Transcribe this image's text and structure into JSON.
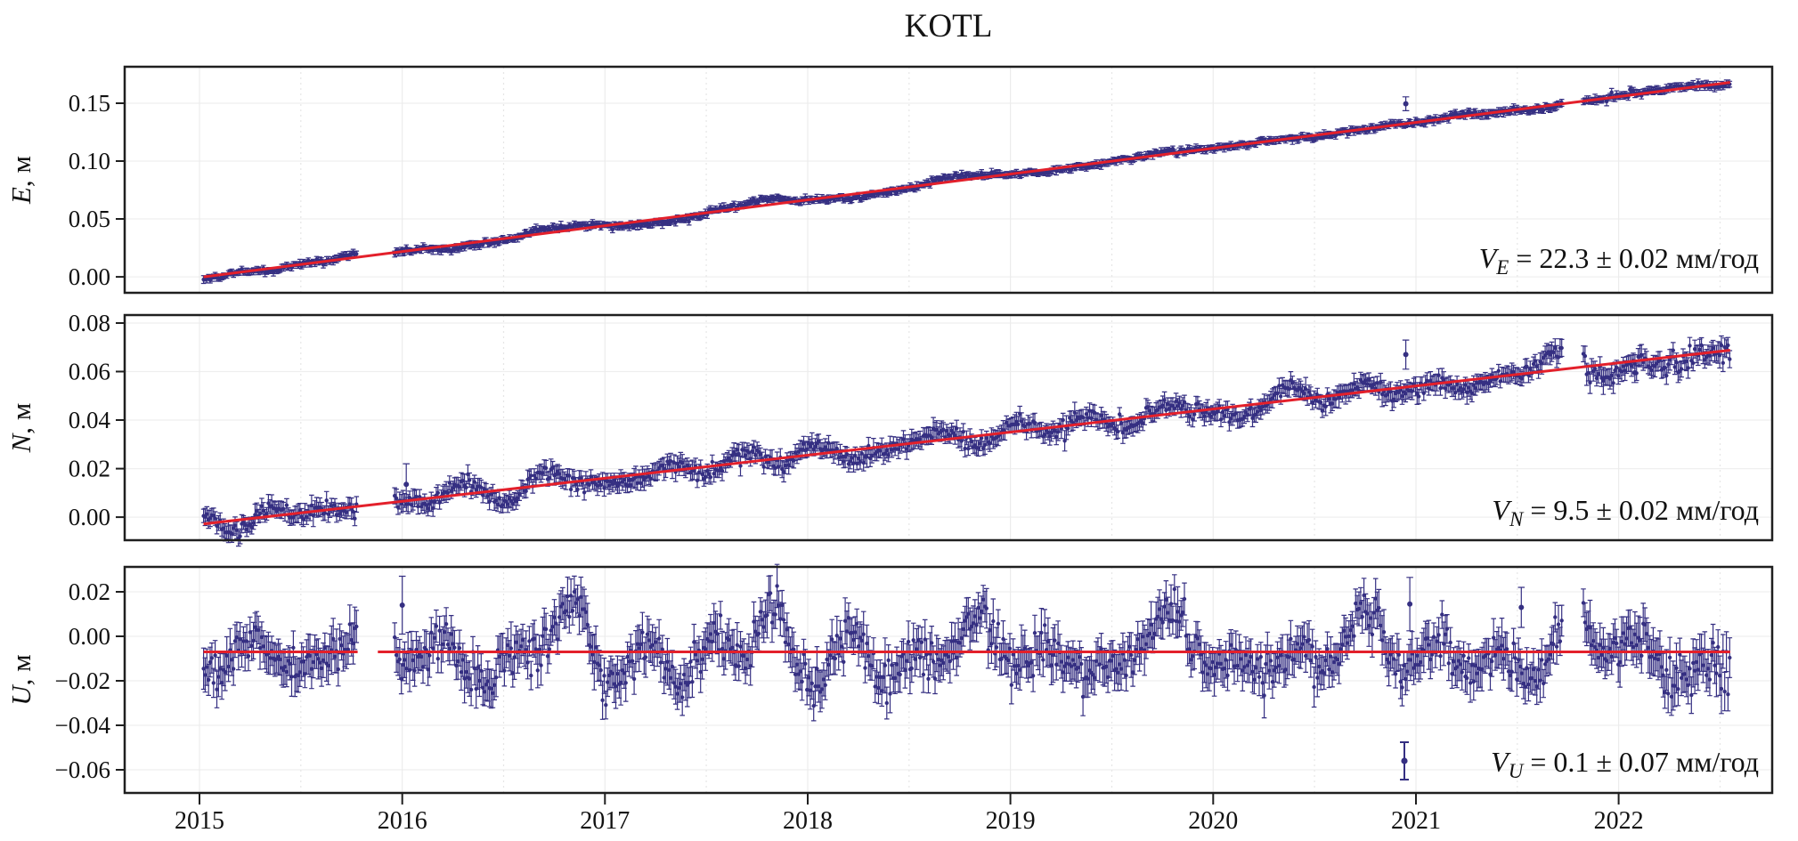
{
  "title": "KOTL",
  "chart_data": {
    "type": "scatter",
    "subtype": "gnss-position-timeseries-with-errorbars",
    "title": "KOTL",
    "x_axis": {
      "tick_labels": [
        "2015",
        "2016",
        "2017",
        "2018",
        "2019",
        "2020",
        "2021",
        "2022"
      ],
      "tick_values": [
        2015,
        2016,
        2017,
        2018,
        2019,
        2020,
        2021,
        2022
      ],
      "range_years": [
        2014.63,
        2022.78
      ],
      "minor_grid_step_years": 0.5,
      "grid": true
    },
    "data_span_years": [
      2015.02,
      2022.55
    ],
    "data_gaps_years": [
      [
        2015.78,
        2015.96
      ],
      [
        2021.72,
        2021.82
      ]
    ],
    "point_color": "#352f82",
    "trend_color": "#e3202b",
    "grid_color": "#efefef",
    "frame_color": "#1f1f1f",
    "panels": [
      {
        "id": "E",
        "ylabel": {
          "letter": "E",
          "unit": ", м"
        },
        "ylim": [
          -0.0138,
          0.1815
        ],
        "yticks": [
          {
            "label": "0.15",
            "value": 0.15
          },
          {
            "label": "0.10",
            "value": 0.1
          },
          {
            "label": "0.05",
            "value": 0.05
          },
          {
            "label": "0.00",
            "value": 0.0
          }
        ],
        "trend": {
          "shape": "linear",
          "start_year": 2015.02,
          "end_year": 2022.55,
          "start_value_m": 0.0,
          "end_value_m": 0.168,
          "red_line_gaps": []
        },
        "velocity": {
          "symbol": "V",
          "subscript": "E",
          "text": " = 22.3 ± 0.02 мм/год",
          "value_mm_yr": 22.3,
          "sigma_mm_yr": 0.02
        },
        "scatter": {
          "sd_m": 0.0011,
          "wander_m": 0.0011,
          "seasonal_annual_m": 0.0008,
          "seasonal_semiannual_m": 0.0004,
          "err_mean_m": 0.0021,
          "err_sd_m": 0.0006,
          "late_noise_after": 2021.0,
          "late_noise_mult": 1.2
        },
        "outliers": [
          {
            "t": 2020.95,
            "y": 0.1495,
            "err": 0.006
          }
        ],
        "legend_marker": false
      },
      {
        "id": "N",
        "ylabel": {
          "letter": "N",
          "unit": ", м"
        },
        "ylim": [
          -0.0095,
          0.0833
        ],
        "yticks": [
          {
            "label": "0.08",
            "value": 0.08
          },
          {
            "label": "0.06",
            "value": 0.06
          },
          {
            "label": "0.04",
            "value": 0.04
          },
          {
            "label": "0.02",
            "value": 0.02
          },
          {
            "label": "0.00",
            "value": 0.0
          }
        ],
        "trend": {
          "shape": "linear",
          "start_year": 2015.02,
          "end_year": 2022.55,
          "start_value_m": -0.0028,
          "end_value_m": 0.0688,
          "red_line_gaps": []
        },
        "velocity": {
          "symbol": "V",
          "subscript": "N",
          "text": " = 9.5 ± 0.02 мм/год",
          "value_mm_yr": 9.5,
          "sigma_mm_yr": 0.02
        },
        "scatter": {
          "sd_m": 0.0016,
          "wander_m": 0.0017,
          "seasonal_annual_m": 0.0012,
          "seasonal_semiannual_m": 0.0005,
          "err_mean_m": 0.0026,
          "err_sd_m": 0.0008,
          "late_noise_after": 2021.8,
          "late_noise_mult": 1.55
        },
        "outliers": [
          {
            "t": 2016.02,
            "y": 0.0135,
            "err": 0.0085
          },
          {
            "t": 2020.95,
            "y": 0.067,
            "err": 0.006
          },
          {
            "t": 2022.08,
            "y": 0.0595,
            "err": 0.004
          }
        ],
        "legend_marker": false
      },
      {
        "id": "U",
        "ylabel": {
          "letter": "U",
          "unit": ", м"
        },
        "ylim": [
          -0.0704,
          0.0312
        ],
        "yticks": [
          {
            "label": "0.02",
            "value": 0.02
          },
          {
            "label": "0.00",
            "value": 0.0
          },
          {
            "label": "−0.02",
            "value": -0.02
          },
          {
            "label": "−0.04",
            "value": -0.04
          },
          {
            "label": "−0.06",
            "value": -0.06
          }
        ],
        "trend": {
          "shape": "flat",
          "start_year": 2015.02,
          "end_year": 2022.55,
          "start_value_m": -0.007,
          "end_value_m": -0.007,
          "red_line_gaps": [
            [
              2015.78,
              2015.88
            ]
          ]
        },
        "velocity": {
          "symbol": "V",
          "subscript": "U",
          "text": " = 0.1 ± 0.07 мм/год",
          "value_mm_yr": 0.1,
          "sigma_mm_yr": 0.07
        },
        "scatter": {
          "sd_m": 0.0046,
          "wander_m": 0.0028,
          "seasonal_annual_m": 0.0072,
          "seasonal_semiannual_m": 0.0032,
          "err_mean_m": 0.0062,
          "err_sd_m": 0.002,
          "late_noise_after": 2022.0,
          "late_noise_mult": 1.3
        },
        "outliers": [
          {
            "t": 2016.0,
            "y": 0.014,
            "err": 0.013
          },
          {
            "t": 2020.97,
            "y": 0.0145,
            "err": 0.012
          },
          {
            "t": 2021.52,
            "y": 0.013,
            "err": 0.009
          }
        ],
        "legend_marker": true
      }
    ]
  }
}
